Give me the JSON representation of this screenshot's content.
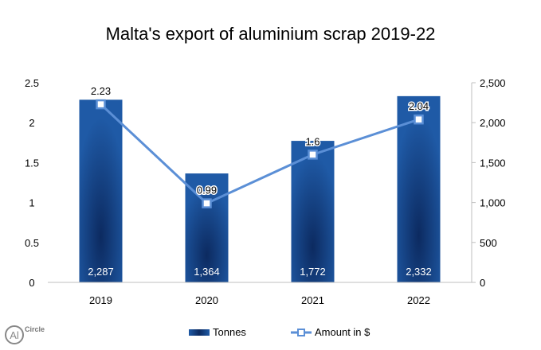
{
  "chart_data": {
    "type": "bar+line",
    "title": "Malta's export of aluminium scrap 2019-22",
    "categories": [
      "2019",
      "2020",
      "2021",
      "2022"
    ],
    "series": [
      {
        "name": "Tonnes",
        "type": "bar",
        "axis": "right",
        "values": [
          2287,
          1364,
          1772,
          2332
        ],
        "labels": [
          "2,287",
          "1,364",
          "1,772",
          "2,332"
        ],
        "color": "#1f5aa6"
      },
      {
        "name": "Amount in $",
        "type": "line",
        "axis": "left",
        "values": [
          2.23,
          0.99,
          1.6,
          2.04
        ],
        "labels": [
          "2.23",
          "0.99",
          "1.6",
          "2.04"
        ],
        "color": "#5b8fd6"
      }
    ],
    "left_axis": {
      "range": [
        0,
        2.5
      ],
      "ticks": [
        "0",
        "0.5",
        "1",
        "1.5",
        "2",
        "2.5"
      ]
    },
    "right_axis": {
      "range": [
        0,
        2500
      ],
      "ticks": [
        "0",
        "500",
        "1,000",
        "1,500",
        "2,000",
        "2,500"
      ]
    },
    "grid": false,
    "legend": "bottom"
  },
  "logo": {
    "text": "AlCircle"
  }
}
